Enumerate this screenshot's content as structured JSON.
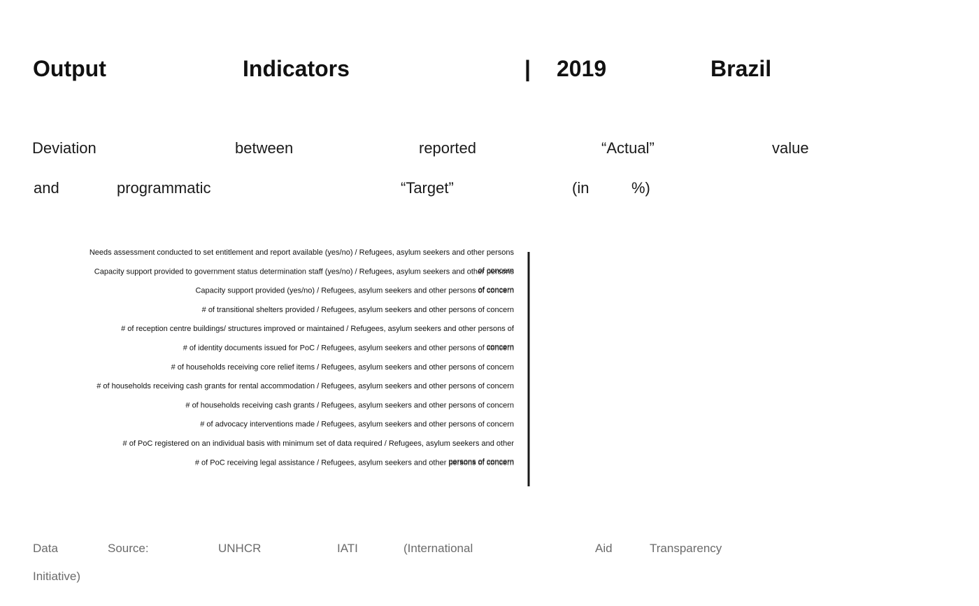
{
  "header": {
    "title_parts": [
      "Output",
      "Indicators",
      "|",
      "2019",
      "Brazil"
    ],
    "subtitle_line1": [
      "Deviation",
      "between",
      "reported",
      "“Actual”",
      "value"
    ],
    "subtitle_line2": [
      "and",
      "programmatic",
      "“Target”",
      "(in",
      "%)"
    ]
  },
  "footer": {
    "source_line1": [
      "Data",
      "Source:",
      "UNHCR",
      "IATI",
      "(International",
      "Aid",
      "Transparency"
    ],
    "source_line2": [
      "Initiative)"
    ]
  },
  "colors": {
    "text": "#111111",
    "axis": "#1a1a1a",
    "footer_text": "#6b6b6b",
    "background": "#ffffff"
  },
  "chart_data": {
    "type": "bar",
    "orientation": "horizontal",
    "title": "",
    "xlabel": "",
    "ylabel": "",
    "grid": false,
    "legend": "none",
    "categories": [
      [
        "Needs assessment conducted to set entitlement and report available (yes/no) / Refugees, asylum seekers and other persons",
        "of concern"
      ],
      [
        "Capacity support provided to government status determination staff (yes/no) / Refugees, asylum seekers and other persons",
        "of concern"
      ],
      [
        "Capacity support provided (yes/no) / Refugees, asylum seekers and other persons of concern"
      ],
      [
        "# of transitional shelters provided / Refugees, asylum seekers and other persons of concern"
      ],
      [
        "# of reception centre buildings/ structures improved or maintained / Refugees, asylum seekers and other persons of",
        "concern"
      ],
      [
        "# of identity documents issued for PoC / Refugees, asylum seekers and other persons of concern"
      ],
      [
        "# of households receiving core relief items / Refugees, asylum seekers and other persons of concern"
      ],
      [
        "# of households receiving cash grants for rental accommodation / Refugees, asylum seekers and other persons of concern"
      ],
      [
        "# of households receiving cash grants / Refugees, asylum seekers and other persons of concern"
      ],
      [
        "# of advocacy interventions made / Refugees, asylum seekers and other persons of concern"
      ],
      [
        "# of PoC registered on an individual basis with minimum set of data required / Refugees, asylum seekers and other",
        "persons of concern"
      ],
      [
        "# of PoC receiving legal assistance / Refugees, asylum seekers and other persons of concern"
      ]
    ],
    "values": [
      0,
      0,
      0,
      0,
      0,
      0,
      0,
      0,
      0,
      0,
      0,
      0
    ]
  }
}
